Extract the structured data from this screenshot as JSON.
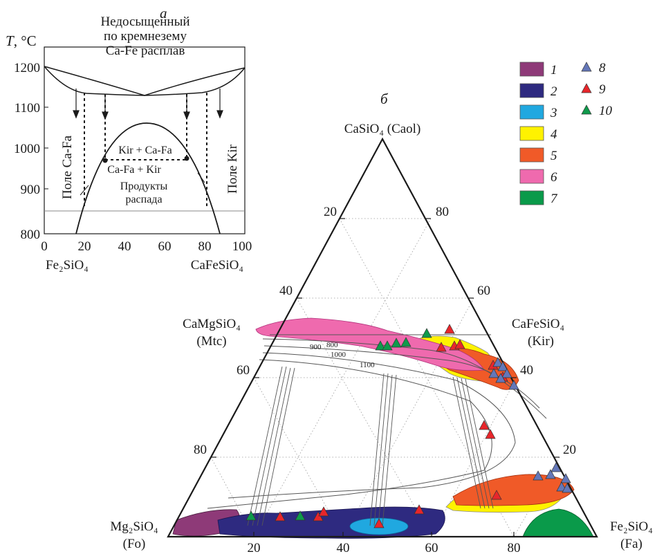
{
  "panel_a": {
    "label": "а",
    "y_axis_label": "T, °C",
    "y_ticks": [
      "1200",
      "1100",
      "1000",
      "900",
      "800"
    ],
    "x_ticks": [
      "0",
      "20",
      "40",
      "60",
      "80",
      "100"
    ],
    "x_left_end": "Fe₂SiO₄",
    "x_right_end": "CaFeSiO₄",
    "melt_label": [
      "Недосыщенный",
      "по кремнезему",
      "Ca-Fe расплав"
    ],
    "field_left": "Поле Ca-Fa",
    "field_right": "Поле Kir",
    "label_kir_cafa": "Kir + Ca-Fa",
    "label_cafa_kir": "Ca-Fa + Kir",
    "decay_label": [
      "Продукты",
      "распада"
    ]
  },
  "panel_b": {
    "label": "б",
    "apex_top": "CaSiO₄ (Caol)",
    "apex_left": [
      "Mg₂SiO₄",
      "(Fo)"
    ],
    "apex_right": [
      "Fe₂SiO₄",
      "(Fa)"
    ],
    "side_left_label": [
      "CaMgSiO₄",
      "(Mtc)"
    ],
    "side_right_label": [
      "CaFeSiO₄",
      "(Kir)"
    ],
    "ticks_left": [
      "20",
      "40",
      "60",
      "80"
    ],
    "ticks_right": [
      "80",
      "60",
      "40",
      "20"
    ],
    "ticks_bottom": [
      "20",
      "40",
      "60",
      "80"
    ],
    "isotherms": [
      "800",
      "900",
      "1000",
      "1100"
    ]
  },
  "legend": {
    "items": [
      {
        "label": "1",
        "color": "#8e3a78",
        "kind": "field"
      },
      {
        "label": "2",
        "color": "#2e2a80",
        "kind": "field"
      },
      {
        "label": "3",
        "color": "#20a8e0",
        "kind": "field"
      },
      {
        "label": "4",
        "color": "#fff200",
        "kind": "field"
      },
      {
        "label": "5",
        "color": "#f05a28",
        "kind": "field"
      },
      {
        "label": "6",
        "color": "#ef6aae",
        "kind": "field"
      },
      {
        "label": "7",
        "color": "#0a9a4a",
        "kind": "field"
      },
      {
        "label": "8",
        "color": "#6477b8",
        "kind": "triangle"
      },
      {
        "label": "9",
        "color": "#e8262b",
        "kind": "triangle"
      },
      {
        "label": "10",
        "color": "#0f9a4b",
        "kind": "triangle"
      }
    ]
  }
}
